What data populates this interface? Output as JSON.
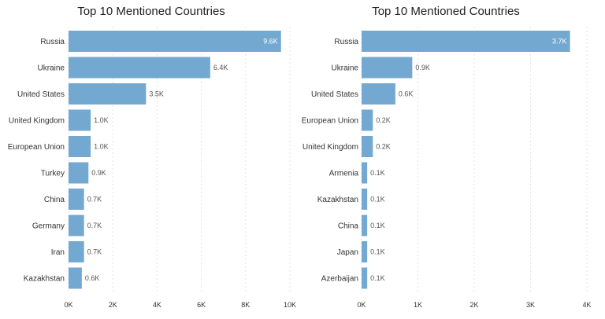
{
  "chart_data": [
    {
      "type": "bar",
      "orientation": "horizontal",
      "title": "Top 10 Mentioned Countries",
      "categories": [
        "Russia",
        "Ukraine",
        "United States",
        "United Kingdom",
        "European Union",
        "Turkey",
        "China",
        "Germany",
        "Iran",
        "Kazakhstan"
      ],
      "values": [
        9600,
        6400,
        3500,
        1000,
        1000,
        900,
        700,
        700,
        700,
        600
      ],
      "value_labels": [
        "9.6K",
        "6.4K",
        "3.5K",
        "1.0K",
        "1.0K",
        "0.9K",
        "0.7K",
        "0.7K",
        "0.7K",
        "0.6K"
      ],
      "xlim": [
        0,
        10000
      ],
      "xticks": [
        0,
        2000,
        4000,
        6000,
        8000,
        10000
      ],
      "xtick_labels": [
        "0K",
        "2K",
        "4K",
        "6K",
        "8K",
        "10K"
      ],
      "grid": "x-dotted",
      "color": "#73a9d0"
    },
    {
      "type": "bar",
      "orientation": "horizontal",
      "title": "Top 10 Mentioned Countries",
      "categories": [
        "Russia",
        "Ukraine",
        "United States",
        "European Union",
        "United Kingdom",
        "Armenia",
        "Kazakhstan",
        "China",
        "Japan",
        "Azerbaijan"
      ],
      "values": [
        3700,
        900,
        600,
        200,
        200,
        100,
        100,
        100,
        100,
        100
      ],
      "value_labels": [
        "3.7K",
        "0.9K",
        "0.6K",
        "0.2K",
        "0.2K",
        "0.1K",
        "0.1K",
        "0.1K",
        "0.1K",
        "0.1K"
      ],
      "xlim": [
        0,
        4000
      ],
      "xticks": [
        0,
        1000,
        2000,
        3000,
        4000
      ],
      "xtick_labels": [
        "0K",
        "1K",
        "2K",
        "3K",
        "4K"
      ],
      "grid": "x-dotted",
      "color": "#73a9d0"
    }
  ]
}
